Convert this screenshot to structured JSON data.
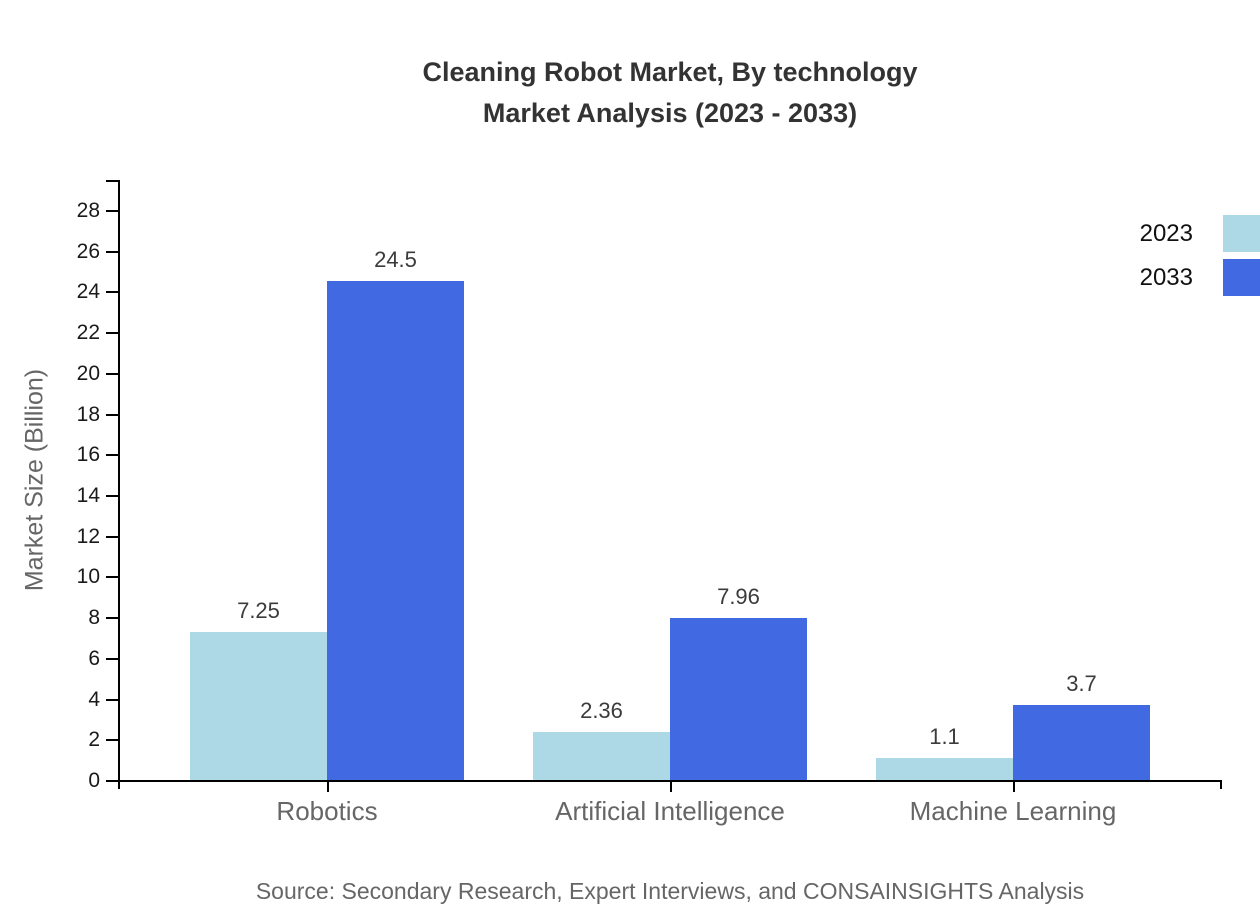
{
  "title": {
    "line1": "Cleaning Robot Market, By technology",
    "line2": "Market Analysis (2023 - 2033)"
  },
  "source_note": "Source: Secondary Research, Expert Interviews, and CONSAINSIGHTS Analysis",
  "colors": {
    "series_2023": "#ADD8E6",
    "series_2033": "#4169E1",
    "axis": "#000000",
    "title_text": "#333333",
    "muted_text": "#666666",
    "value_label_text": "#3b3b3b",
    "tick_label_text": "#1a1a1a"
  },
  "legend": {
    "items": [
      {
        "label": "2023",
        "color": "#ADD8E6"
      },
      {
        "label": "2033",
        "color": "#4169E1"
      }
    ]
  },
  "chart_data": {
    "type": "bar",
    "title": "Cleaning Robot Market, By technology Market Analysis (2023 - 2033)",
    "categories": [
      "Robotics",
      "Artificial Intelligence",
      "Machine Learning"
    ],
    "series": [
      {
        "name": "2023",
        "color": "#ADD8E6",
        "values": [
          7.25,
          2.36,
          1.1
        ],
        "labels": [
          "7.25",
          "2.36",
          "1.1"
        ]
      },
      {
        "name": "2033",
        "color": "#4169E1",
        "values": [
          24.5,
          7.96,
          3.7
        ],
        "labels": [
          "24.5",
          "7.96",
          "3.7"
        ]
      }
    ],
    "xlabel": "",
    "ylabel": "Market Size (Billion)",
    "ylim": [
      0,
      28
    ],
    "ytick_step": 2,
    "ytick_labels": [
      "0",
      "2",
      "4",
      "6",
      "8",
      "10",
      "12",
      "14",
      "16",
      "18",
      "20",
      "22",
      "24",
      "26",
      "28"
    ],
    "grid": false,
    "legend_position": "top-right",
    "value_labels_shown": true
  }
}
